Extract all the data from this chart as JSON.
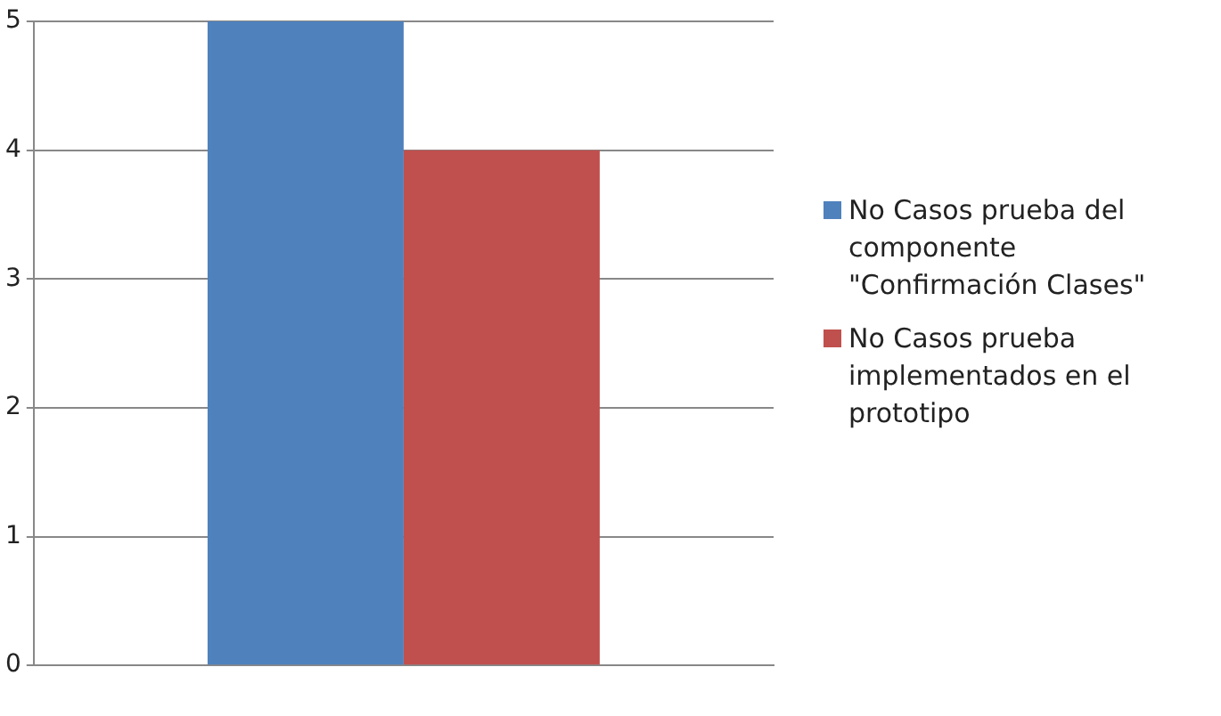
{
  "chart_data": {
    "type": "bar",
    "categories": [
      null
    ],
    "series": [
      {
        "name": "No Casos prueba del componente \"Confirmación Clases\"",
        "color": "#4f81bd",
        "values": [
          5
        ]
      },
      {
        "name": "No Casos prueba implementados en el prototipo",
        "color": "#c0504d",
        "values": [
          4
        ]
      }
    ],
    "ylim": [
      0,
      5
    ],
    "yticks": [
      0,
      1,
      2,
      3,
      4,
      5
    ],
    "grid": "y",
    "legend": "right"
  }
}
